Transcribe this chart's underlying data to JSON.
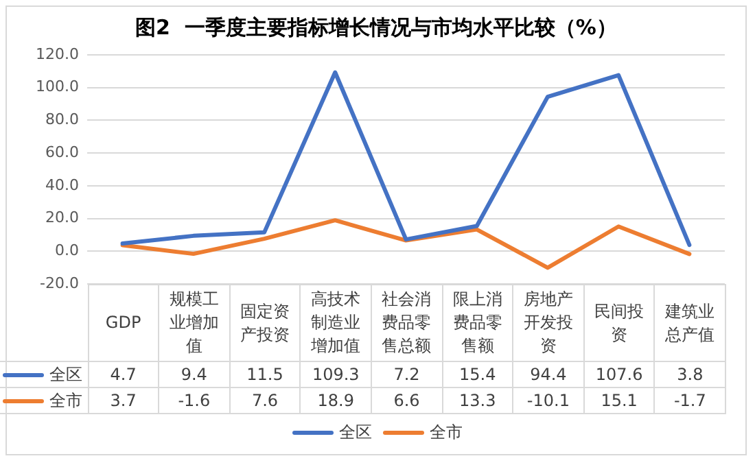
{
  "chart_data": {
    "type": "line",
    "title": "图2  一季度主要指标增长情况与市均水平比较（%）",
    "categories": [
      "GDP",
      "规模工业增加值",
      "固定资产投资",
      "高技术制造业增加值",
      "社会消费品零售总额",
      "限上消费品零售额",
      "房地产开发投资",
      "民间投资",
      "建筑业总产值"
    ],
    "series": [
      {
        "name": "全区",
        "color": "#4472c4",
        "values": [
          4.7,
          9.4,
          11.5,
          109.3,
          7.2,
          15.4,
          94.4,
          107.6,
          3.8
        ]
      },
      {
        "name": "全市",
        "color": "#ed7d31",
        "values": [
          3.7,
          -1.6,
          7.6,
          18.9,
          6.6,
          13.3,
          -10.1,
          15.1,
          -1.7
        ]
      }
    ],
    "ylim": [
      -20,
      120
    ],
    "yticks": [
      {
        "value": -20,
        "label": "-20.0"
      },
      {
        "value": 0,
        "label": "0.0"
      },
      {
        "value": 20,
        "label": "20.0"
      },
      {
        "value": 40,
        "label": "40.0"
      },
      {
        "value": 60,
        "label": "60.0"
      },
      {
        "value": 80,
        "label": "80.0"
      },
      {
        "value": 100,
        "label": "100.0"
      },
      {
        "value": 120,
        "label": "120.0"
      }
    ],
    "grid": "y",
    "legend": "bottom",
    "marker": "none",
    "line_style": "solid",
    "data_labels": true
  }
}
